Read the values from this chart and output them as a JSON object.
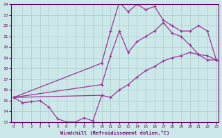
{
  "xlabel": "Windchill (Refroidissement éolien,°C)",
  "xlim": [
    0,
    23
  ],
  "ylim": [
    13,
    24
  ],
  "yticks": [
    13,
    14,
    15,
    16,
    17,
    18,
    19,
    20,
    21,
    22,
    23,
    24
  ],
  "xticks": [
    0,
    1,
    2,
    3,
    4,
    5,
    6,
    7,
    8,
    9,
    10,
    11,
    12,
    13,
    14,
    15,
    16,
    17,
    18,
    19,
    20,
    21,
    22,
    23
  ],
  "bg_color": "#cce8e8",
  "grid_color": "#aacccc",
  "line_color": "#993399",
  "series": [
    {
      "x": [
        0,
        1,
        2,
        3,
        4,
        5,
        6,
        7,
        8,
        9,
        10
      ],
      "y": [
        15.3,
        14.8,
        14.9,
        15.0,
        14.4,
        13.3,
        13.0,
        13.0,
        13.4,
        13.1,
        15.5
      ]
    },
    {
      "x": [
        0,
        10,
        11,
        12,
        13,
        14,
        15,
        16,
        17,
        18,
        19,
        20,
        21,
        22,
        23
      ],
      "y": [
        15.3,
        15.5,
        15.3,
        16.0,
        16.5,
        17.2,
        17.8,
        18.2,
        18.7,
        19.0,
        19.2,
        19.5,
        19.3,
        18.8,
        18.8
      ]
    },
    {
      "x": [
        0,
        10,
        11,
        12,
        13,
        14,
        15,
        16,
        17,
        18,
        19,
        20,
        21,
        22,
        23
      ],
      "y": [
        15.3,
        16.5,
        19.2,
        21.5,
        19.5,
        20.5,
        21.0,
        21.5,
        22.3,
        21.3,
        21.0,
        20.2,
        19.3,
        19.2,
        18.8
      ]
    },
    {
      "x": [
        0,
        10,
        11,
        12,
        13,
        14,
        15,
        16,
        17,
        18,
        19,
        20,
        21,
        22,
        23
      ],
      "y": [
        15.3,
        18.5,
        21.5,
        24.2,
        23.3,
        24.0,
        23.5,
        23.8,
        22.5,
        22.0,
        21.5,
        21.5,
        22.0,
        21.5,
        18.8
      ]
    }
  ]
}
